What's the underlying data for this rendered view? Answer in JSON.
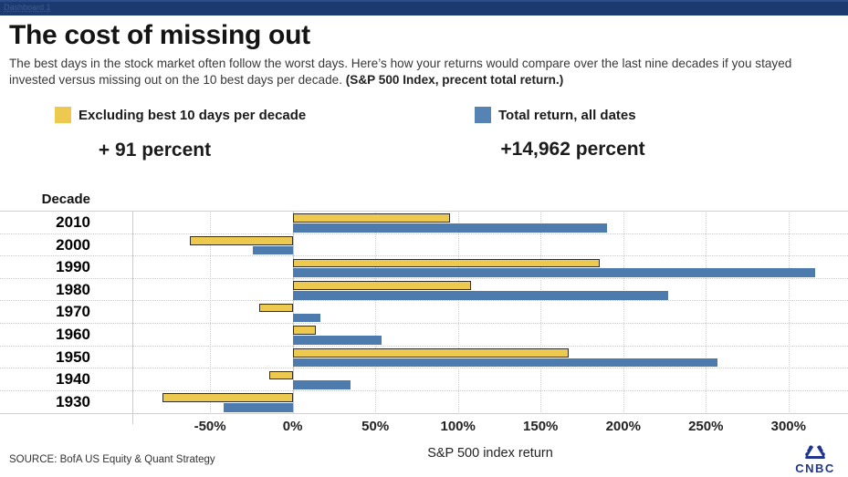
{
  "window": {
    "tab_label": "Dashboard 1"
  },
  "header": {
    "title": "The cost of missing out",
    "subtitle": "The best days in the stock market often follow the worst days. Here’s how your returns would compare over the last nine decades if you stayed invested versus missing out on the 10 best days per decade. ",
    "subtitle_note": "(S&P 500 Index, precent total return.)"
  },
  "legend": {
    "excluding": {
      "label": "Excluding best 10 days per decade",
      "value": "+ 91 percent",
      "color": "#EDC94F"
    },
    "total": {
      "label": "Total return, all dates",
      "value": "+14,962 percent",
      "color": "#5583B3"
    }
  },
  "chart_data": {
    "type": "bar",
    "orientation": "horizontal",
    "title": "The cost of missing out",
    "xlabel": "S&P 500 index return",
    "ylabel": "Decade",
    "categories": [
      "2010",
      "2000",
      "1990",
      "1980",
      "1970",
      "1960",
      "1950",
      "1940",
      "1930"
    ],
    "series": [
      {
        "name": "Excluding best 10 days per decade",
        "color": "#EDC94F",
        "values": [
          95,
          -62,
          186,
          108,
          -20,
          14,
          167,
          -14,
          -79
        ]
      },
      {
        "name": "Total return, all dates",
        "color": "#4E7BAE",
        "values": [
          190,
          -24,
          316,
          227,
          17,
          54,
          257,
          35,
          -42
        ]
      }
    ],
    "x_ticks": [
      -50,
      0,
      50,
      100,
      150,
      200,
      250,
      300
    ],
    "tick_suffix": "%",
    "xlim": [
      -97,
      336
    ],
    "grid": "vertical-dotted",
    "legend_position": "top",
    "summary_values": {
      "excluding_best_10_days_since_1930": "+91%",
      "total_return_since_1930": "+14,962%"
    }
  },
  "footer": {
    "source": "SOURCE: BofA US Equity & Quant Strategy",
    "logo_text": "CNBC"
  },
  "colors": {
    "top_bar": "#1B3A70",
    "bar_yellow": "#EDC94F",
    "bar_blue": "#4E7BAE",
    "logo_navy": "#20368C"
  }
}
